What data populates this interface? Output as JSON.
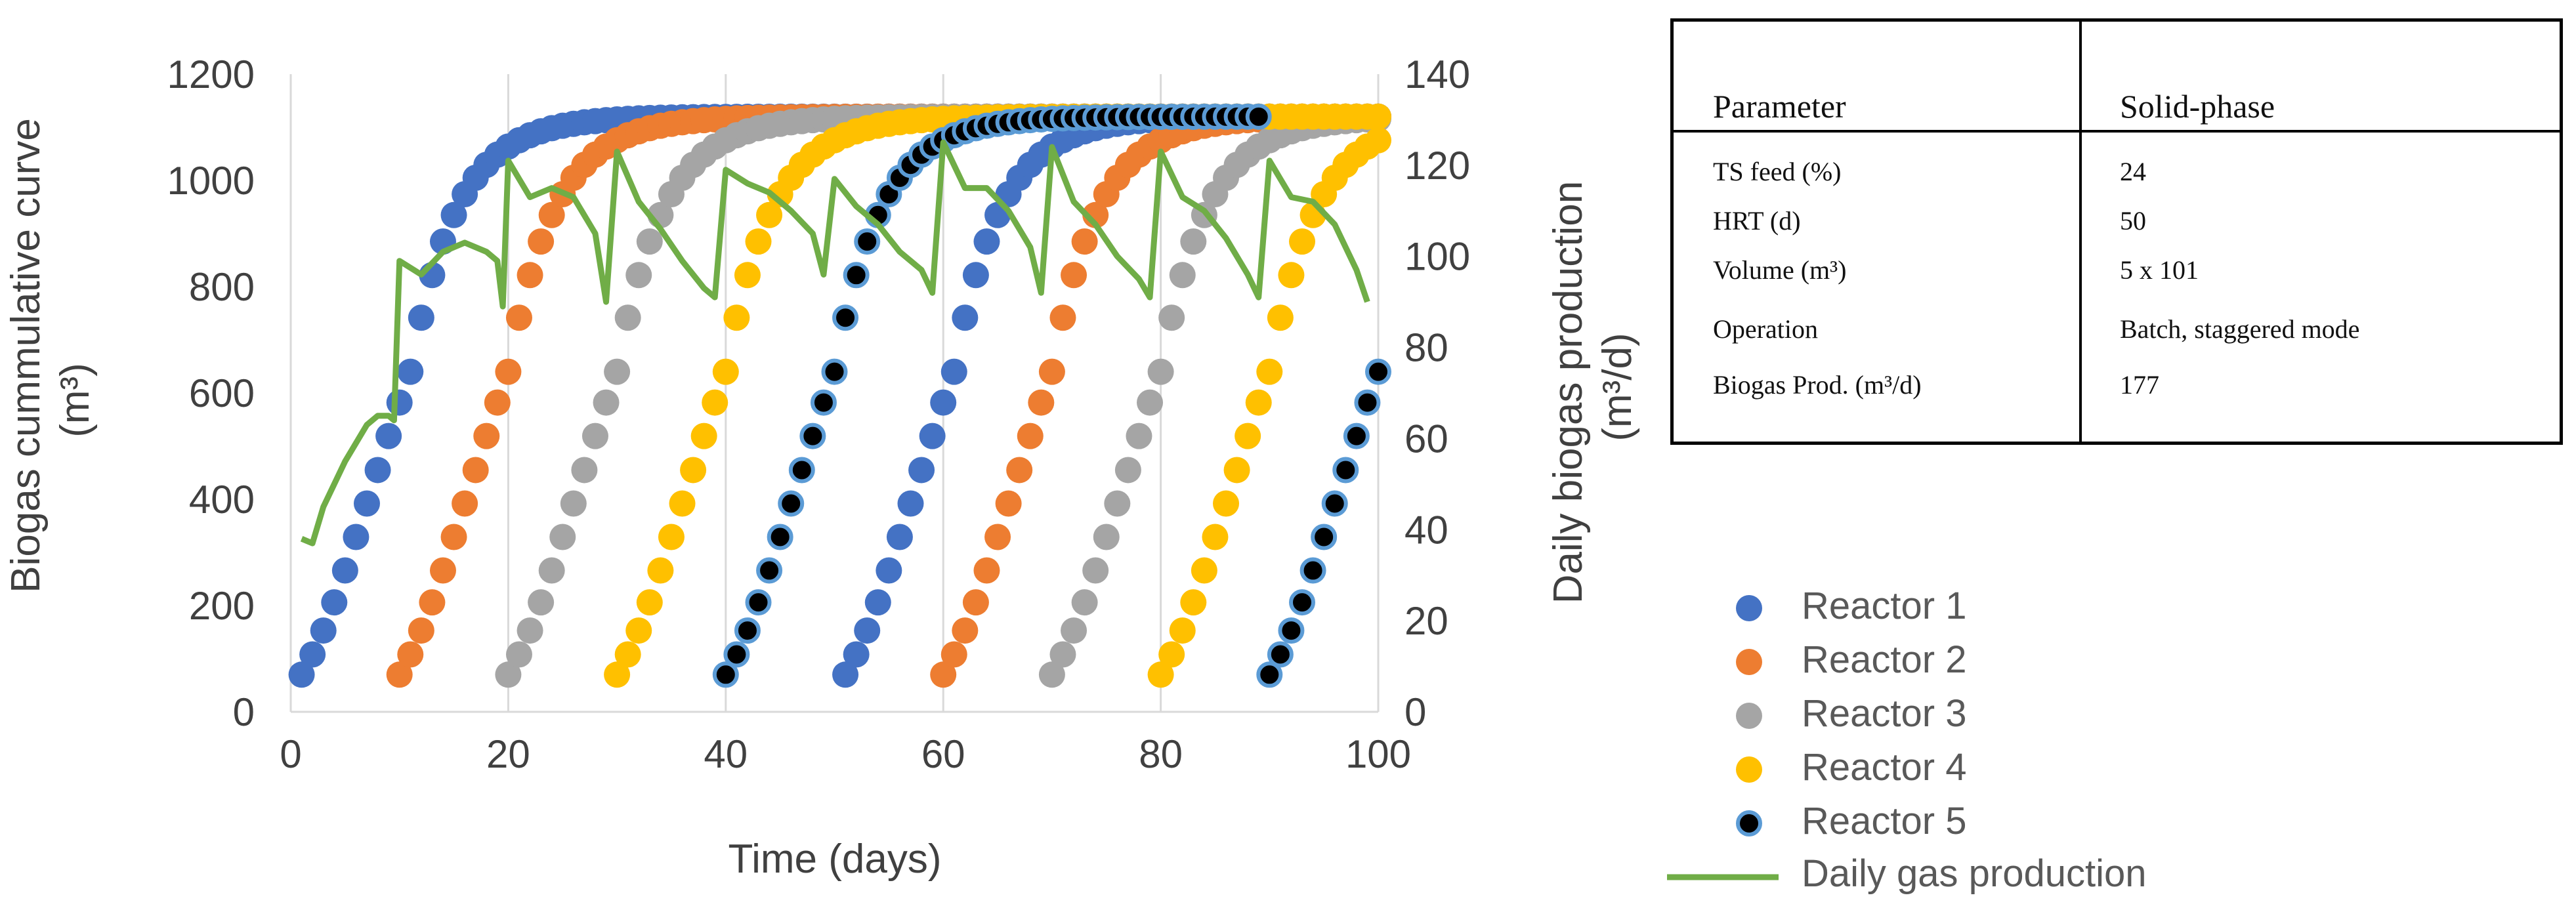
{
  "chart_data": {
    "type": "scatter",
    "xlabel": "Time (days)",
    "ylabel_left": "Biogas  cummulative curve (m³)",
    "ylabel_left_line1": "Biogas  cummulative curve",
    "ylabel_left_line2": "(m³)",
    "ylabel_right_line1": "Daily biogas production",
    "ylabel_right_line2": "(m³/d)",
    "xlim": [
      0,
      100
    ],
    "ylim_left": [
      0,
      1200
    ],
    "ylim_right": [
      0,
      140
    ],
    "xticks": [
      "0",
      "20",
      "40",
      "60",
      "80",
      "100"
    ],
    "yticks_left": [
      "0",
      "200",
      "400",
      "600",
      "800",
      "1000",
      "1200"
    ],
    "yticks_right": [
      "0",
      "20",
      "40",
      "60",
      "80",
      "100",
      "120",
      "140"
    ],
    "grid": "vertical",
    "legend_position": "bottom-right",
    "series": [
      {
        "name": "Reactor 1",
        "color": "#4472C4",
        "start_days": [
          1,
          51
        ],
        "values_first": [
          70,
          108,
          153,
          206,
          266,
          329,
          392,
          455,
          519,
          582,
          640
        ]
      },
      {
        "name": "Reactor 2",
        "color": "#ED7D31",
        "start_days": [
          10,
          60
        ],
        "values_first": [
          70,
          108,
          153,
          206,
          266,
          329,
          392,
          455,
          519,
          582,
          640
        ]
      },
      {
        "name": "Reactor 3",
        "color": "#A5A5A5",
        "start_days": [
          20,
          70
        ],
        "values_first": [
          70,
          108,
          153,
          206,
          266,
          329,
          392,
          455,
          519,
          582,
          640
        ]
      },
      {
        "name": "Reactor 4",
        "color": "#FFC000",
        "start_days": [
          30,
          80
        ],
        "values_first": [
          70,
          108,
          153,
          206,
          266,
          329,
          392,
          455,
          519,
          582,
          640
        ]
      },
      {
        "name": "Reactor 5",
        "color": "#000000",
        "edge_color": "#5B9BD5",
        "start_days": [
          40,
          90
        ],
        "values_first": [
          70,
          108,
          153,
          206,
          266,
          329,
          392,
          455,
          519,
          582,
          640
        ]
      }
    ],
    "gas_series": {
      "name": "Daily gas production",
      "color": "#70AD47",
      "axis": "right",
      "x": [
        1,
        2,
        3,
        5,
        7,
        8,
        9,
        9.5,
        10,
        12,
        14,
        16,
        18,
        19,
        19.5,
        20,
        22,
        24,
        26,
        28,
        29,
        30,
        32,
        34,
        36,
        38,
        39,
        40,
        42,
        44,
        46,
        48,
        49,
        50,
        52,
        54,
        56,
        58,
        59,
        60,
        62,
        64,
        66,
        68,
        69,
        70,
        72,
        74,
        76,
        78,
        79,
        80,
        82,
        84,
        86,
        88,
        89,
        90,
        92,
        94,
        96,
        98,
        99
      ],
      "y": [
        38,
        37,
        45,
        55,
        63,
        65,
        65,
        64,
        99,
        96,
        101,
        103,
        101,
        99,
        89,
        121,
        113,
        115,
        113,
        105,
        90,
        123,
        112,
        106,
        99,
        93,
        91,
        119,
        116,
        114,
        110,
        105,
        96,
        117,
        111,
        107,
        101,
        97,
        92,
        125,
        115,
        115,
        110,
        102,
        92,
        124,
        112,
        107,
        100,
        95,
        91,
        123,
        113,
        110,
        104,
        96,
        91,
        121,
        113,
        112,
        107,
        97,
        90
      ]
    }
  },
  "table": {
    "header": {
      "param": "Parameter",
      "value": "Solid-phase"
    },
    "rows": [
      {
        "param": "TS feed (%)",
        "value": "24"
      },
      {
        "param": "HRT (d)",
        "value": "50"
      },
      {
        "param": "Volume (m³)",
        "value": "5 x 101"
      },
      {
        "param": "Operation",
        "value": "Batch, staggered mode"
      },
      {
        "param": "Biogas Prod. (m³/d)",
        "value": "177"
      }
    ]
  }
}
